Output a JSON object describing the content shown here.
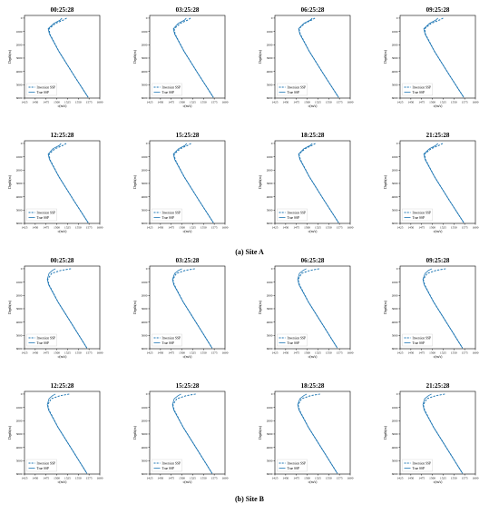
{
  "figure": {
    "captions": [
      "(a) Site A",
      "(b) Site B"
    ]
  },
  "colors": {
    "series": "#1f77b4",
    "axis": "#000000",
    "background": "#ffffff"
  },
  "chart_data": [
    {
      "site": "(a) Site A",
      "type": "line",
      "xlabel": "c(m/s)",
      "ylabel": "Depth(m)",
      "xlim": [
        1425,
        1600
      ],
      "ylim": [
        6000,
        -200
      ],
      "xticks": [
        1425,
        1450,
        1475,
        1500,
        1525,
        1550,
        1575,
        1600
      ],
      "yticks": [
        0,
        1000,
        2000,
        3000,
        4000,
        5000,
        6000
      ],
      "legend": {
        "placement": "bottom-left",
        "entries": [
          "Inversion SSP",
          "True SSP"
        ]
      },
      "panels": [
        {
          "title": "00:25:28",
          "series": [
            {
              "name": "Inversion SSP",
              "style": "dashed",
              "x": [
                1523,
                1515,
                1497,
                1482,
                1484,
                1505,
                1540,
                1573
              ],
              "y": [
                0,
                150,
                400,
                800,
                1200,
                2500,
                4300,
                5950
              ]
            },
            {
              "name": "True SSP",
              "style": "solid",
              "x": [
                1512,
                1508,
                1493,
                1480,
                1483,
                1505,
                1540,
                1573
              ],
              "y": [
                0,
                150,
                400,
                800,
                1200,
                2500,
                4300,
                5950
              ]
            }
          ]
        },
        {
          "title": "03:25:28",
          "series": [
            {
              "name": "Inversion SSP",
              "style": "dashed",
              "x": [
                1520,
                1513,
                1496,
                1482,
                1484,
                1505,
                1540,
                1573
              ],
              "y": [
                0,
                150,
                400,
                800,
                1200,
                2500,
                4300,
                5950
              ]
            },
            {
              "name": "True SSP",
              "style": "solid",
              "x": [
                1510,
                1506,
                1491,
                1480,
                1483,
                1505,
                1540,
                1573
              ],
              "y": [
                0,
                150,
                400,
                800,
                1200,
                2500,
                4300,
                5950
              ]
            }
          ]
        },
        {
          "title": "06:25:28",
          "series": [
            {
              "name": "Inversion SSP",
              "style": "dashed",
              "x": [
                1518,
                1510,
                1494,
                1481,
                1484,
                1505,
                1540,
                1573
              ],
              "y": [
                0,
                150,
                400,
                800,
                1200,
                2500,
                4300,
                5950
              ]
            },
            {
              "name": "True SSP",
              "style": "solid",
              "x": [
                1512,
                1507,
                1492,
                1480,
                1483,
                1505,
                1540,
                1573
              ],
              "y": [
                0,
                150,
                400,
                800,
                1200,
                2500,
                4300,
                5950
              ]
            }
          ]
        },
        {
          "title": "09:25:28",
          "series": [
            {
              "name": "Inversion SSP",
              "style": "dashed",
              "x": [
                1525,
                1516,
                1497,
                1482,
                1484,
                1505,
                1540,
                1573
              ],
              "y": [
                0,
                150,
                400,
                800,
                1200,
                2500,
                4300,
                5950
              ]
            },
            {
              "name": "True SSP",
              "style": "solid",
              "x": [
                1513,
                1508,
                1493,
                1480,
                1483,
                1505,
                1540,
                1573
              ],
              "y": [
                0,
                150,
                400,
                800,
                1200,
                2500,
                4300,
                5950
              ]
            }
          ]
        },
        {
          "title": "12:25:28",
          "series": [
            {
              "name": "Inversion SSP",
              "style": "dashed",
              "x": [
                1522,
                1514,
                1496,
                1482,
                1484,
                1505,
                1540,
                1573
              ],
              "y": [
                0,
                150,
                400,
                800,
                1200,
                2500,
                4300,
                5950
              ]
            },
            {
              "name": "True SSP",
              "style": "solid",
              "x": [
                1510,
                1506,
                1491,
                1480,
                1483,
                1505,
                1540,
                1573
              ],
              "y": [
                0,
                150,
                400,
                800,
                1200,
                2500,
                4300,
                5950
              ]
            }
          ]
        },
        {
          "title": "15:25:28",
          "series": [
            {
              "name": "Inversion SSP",
              "style": "dashed",
              "x": [
                1521,
                1513,
                1496,
                1482,
                1484,
                1505,
                1540,
                1573
              ],
              "y": [
                0,
                150,
                400,
                800,
                1200,
                2500,
                4300,
                5950
              ]
            },
            {
              "name": "True SSP",
              "style": "solid",
              "x": [
                1511,
                1507,
                1492,
                1480,
                1483,
                1505,
                1540,
                1573
              ],
              "y": [
                0,
                150,
                400,
                800,
                1200,
                2500,
                4300,
                5950
              ]
            }
          ]
        },
        {
          "title": "18:25:28",
          "series": [
            {
              "name": "Inversion SSP",
              "style": "dashed",
              "x": [
                1519,
                1511,
                1495,
                1481,
                1484,
                1505,
                1540,
                1573
              ],
              "y": [
                0,
                150,
                400,
                800,
                1200,
                2500,
                4300,
                5950
              ]
            },
            {
              "name": "True SSP",
              "style": "solid",
              "x": [
                1512,
                1507,
                1492,
                1480,
                1483,
                1505,
                1540,
                1573
              ],
              "y": [
                0,
                150,
                400,
                800,
                1200,
                2500,
                4300,
                5950
              ]
            }
          ]
        },
        {
          "title": "21:25:28",
          "series": [
            {
              "name": "Inversion SSP",
              "style": "dashed",
              "x": [
                1524,
                1515,
                1497,
                1482,
                1484,
                1505,
                1540,
                1573
              ],
              "y": [
                0,
                150,
                400,
                800,
                1200,
                2500,
                4300,
                5950
              ]
            },
            {
              "name": "True SSP",
              "style": "solid",
              "x": [
                1513,
                1508,
                1493,
                1480,
                1483,
                1505,
                1540,
                1573
              ],
              "y": [
                0,
                150,
                400,
                800,
                1200,
                2500,
                4300,
                5950
              ]
            }
          ]
        }
      ]
    },
    {
      "site": "(b) Site B",
      "type": "line",
      "xlabel": "c(m/s)",
      "ylabel": "Depth(m)",
      "xlim": [
        1425,
        1600
      ],
      "ylim": [
        6000,
        -200
      ],
      "xticks": [
        1425,
        1450,
        1475,
        1500,
        1525,
        1550,
        1575,
        1600
      ],
      "yticks": [
        0,
        1000,
        2000,
        3000,
        4000,
        5000,
        6000
      ],
      "legend": {
        "placement": "bottom-left",
        "entries": [
          "Inversion SSP",
          "True SSP"
        ]
      },
      "panels": [
        {
          "title": "00:25:28",
          "series": [
            {
              "name": "Inversion SSP",
              "style": "dashed",
              "x": [
                1533,
                1510,
                1488,
                1479,
                1482,
                1503,
                1540,
                1570
              ],
              "y": [
                0,
                120,
                350,
                800,
                1200,
                2500,
                4400,
                5950
              ]
            },
            {
              "name": "True SSP",
              "style": "solid",
              "x": [
                1497,
                1490,
                1482,
                1478,
                1481,
                1503,
                1540,
                1570
              ],
              "y": [
                0,
                120,
                350,
                800,
                1200,
                2500,
                4400,
                5950
              ]
            }
          ]
        },
        {
          "title": "03:25:28",
          "series": [
            {
              "name": "Inversion SSP",
              "style": "dashed",
              "x": [
                1530,
                1508,
                1487,
                1479,
                1482,
                1503,
                1540,
                1570
              ],
              "y": [
                0,
                120,
                350,
                800,
                1200,
                2500,
                4400,
                5950
              ]
            },
            {
              "name": "True SSP",
              "style": "solid",
              "x": [
                1500,
                1492,
                1483,
                1478,
                1481,
                1503,
                1540,
                1570
              ],
              "y": [
                0,
                120,
                350,
                800,
                1200,
                2500,
                4400,
                5950
              ]
            }
          ]
        },
        {
          "title": "06:25:28",
          "series": [
            {
              "name": "Inversion SSP",
              "style": "dashed",
              "x": [
                1528,
                1507,
                1487,
                1479,
                1482,
                1503,
                1540,
                1570
              ],
              "y": [
                0,
                120,
                350,
                800,
                1200,
                2500,
                4400,
                5950
              ]
            },
            {
              "name": "True SSP",
              "style": "solid",
              "x": [
                1498,
                1491,
                1482,
                1478,
                1481,
                1503,
                1540,
                1570
              ],
              "y": [
                0,
                120,
                350,
                800,
                1200,
                2500,
                4400,
                5950
              ]
            }
          ]
        },
        {
          "title": "09:25:28",
          "series": [
            {
              "name": "Inversion SSP",
              "style": "dashed",
              "x": [
                1531,
                1509,
                1488,
                1479,
                1482,
                1503,
                1540,
                1570
              ],
              "y": [
                0,
                120,
                350,
                800,
                1200,
                2500,
                4400,
                5950
              ]
            },
            {
              "name": "True SSP",
              "style": "solid",
              "x": [
                1499,
                1491,
                1483,
                1478,
                1481,
                1503,
                1540,
                1570
              ],
              "y": [
                0,
                120,
                350,
                800,
                1200,
                2500,
                4400,
                5950
              ]
            }
          ]
        },
        {
          "title": "12:25:28",
          "series": [
            {
              "name": "Inversion SSP",
              "style": "dashed",
              "x": [
                1529,
                1508,
                1487,
                1479,
                1482,
                1503,
                1540,
                1570
              ],
              "y": [
                0,
                120,
                350,
                800,
                1200,
                2500,
                4400,
                5950
              ]
            },
            {
              "name": "True SSP",
              "style": "solid",
              "x": [
                1497,
                1490,
                1482,
                1478,
                1481,
                1503,
                1540,
                1570
              ],
              "y": [
                0,
                120,
                350,
                800,
                1200,
                2500,
                4400,
                5950
              ]
            }
          ]
        },
        {
          "title": "15:25:28",
          "series": [
            {
              "name": "Inversion SSP",
              "style": "dashed",
              "x": [
                1532,
                1510,
                1488,
                1479,
                1482,
                1503,
                1540,
                1570
              ],
              "y": [
                0,
                120,
                350,
                800,
                1200,
                2500,
                4400,
                5950
              ]
            },
            {
              "name": "True SSP",
              "style": "solid",
              "x": [
                1498,
                1491,
                1482,
                1478,
                1481,
                1503,
                1540,
                1570
              ],
              "y": [
                0,
                120,
                350,
                800,
                1200,
                2500,
                4400,
                5950
              ]
            }
          ]
        },
        {
          "title": "18:25:28",
          "series": [
            {
              "name": "Inversion SSP",
              "style": "dashed",
              "x": [
                1530,
                1508,
                1487,
                1479,
                1482,
                1503,
                1540,
                1570
              ],
              "y": [
                0,
                120,
                350,
                800,
                1200,
                2500,
                4400,
                5950
              ]
            },
            {
              "name": "True SSP",
              "style": "solid",
              "x": [
                1499,
                1492,
                1483,
                1478,
                1481,
                1503,
                1540,
                1570
              ],
              "y": [
                0,
                120,
                350,
                800,
                1200,
                2500,
                4400,
                5950
              ]
            }
          ]
        },
        {
          "title": "21:25:28",
          "series": [
            {
              "name": "Inversion SSP",
              "style": "dashed",
              "x": [
                1529,
                1508,
                1487,
                1479,
                1482,
                1503,
                1540,
                1570
              ],
              "y": [
                0,
                120,
                350,
                800,
                1200,
                2500,
                4400,
                5950
              ]
            },
            {
              "name": "True SSP",
              "style": "solid",
              "x": [
                1498,
                1491,
                1482,
                1478,
                1481,
                1503,
                1540,
                1570
              ],
              "y": [
                0,
                120,
                350,
                800,
                1200,
                2500,
                4400,
                5950
              ]
            }
          ]
        }
      ]
    }
  ]
}
